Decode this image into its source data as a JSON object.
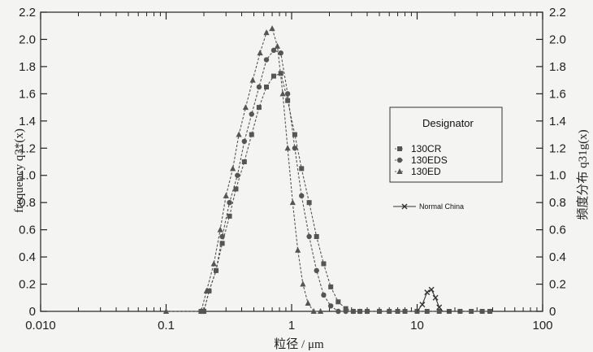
{
  "chart_data": {
    "type": "line",
    "xscale": "log",
    "xlim": [
      0.01,
      100
    ],
    "ylim": [
      0,
      2.2
    ],
    "x_ticks": [
      "0.010",
      "0.1",
      "1",
      "10",
      "100"
    ],
    "y_ticks": [
      "0",
      "0.2",
      "0.4",
      "0.6",
      "0.8",
      "1.0",
      "1.2",
      "1.4",
      "1.6",
      "1.8",
      "2.0",
      "2.2"
    ],
    "ylabel_left": "frequency q3*(x)",
    "ylabel_right": "频度分布 q31g(x)",
    "xlabel": "粒径 / μm",
    "legend_title": "Designator",
    "legend_placement": "right",
    "series": [
      {
        "name": "130CR",
        "marker": "square",
        "color": "#555555",
        "points": [
          [
            0.19,
            0
          ],
          [
            0.2,
            0
          ],
          [
            0.22,
            0.15
          ],
          [
            0.25,
            0.3
          ],
          [
            0.28,
            0.5
          ],
          [
            0.32,
            0.7
          ],
          [
            0.36,
            0.9
          ],
          [
            0.42,
            1.1
          ],
          [
            0.48,
            1.3
          ],
          [
            0.55,
            1.5
          ],
          [
            0.63,
            1.65
          ],
          [
            0.72,
            1.73
          ],
          [
            0.82,
            1.75
          ],
          [
            0.93,
            1.55
          ],
          [
            1.06,
            1.3
          ],
          [
            1.2,
            1.05
          ],
          [
            1.38,
            0.8
          ],
          [
            1.58,
            0.55
          ],
          [
            1.8,
            0.35
          ],
          [
            2.05,
            0.18
          ],
          [
            2.35,
            0.07
          ],
          [
            2.7,
            0.02
          ],
          [
            3.1,
            0
          ],
          [
            3.5,
            0
          ],
          [
            4,
            0
          ],
          [
            5,
            0
          ],
          [
            6,
            0
          ],
          [
            7,
            0
          ],
          [
            8,
            0
          ],
          [
            10,
            0
          ],
          [
            12,
            0
          ],
          [
            15,
            0
          ],
          [
            18,
            0
          ],
          [
            22,
            0
          ],
          [
            27,
            0
          ],
          [
            33,
            0
          ],
          [
            38,
            0
          ]
        ]
      },
      {
        "name": "130EDS",
        "marker": "circle",
        "color": "#555555",
        "points": [
          [
            0.19,
            0
          ],
          [
            0.2,
            0
          ],
          [
            0.22,
            0.15
          ],
          [
            0.25,
            0.3
          ],
          [
            0.28,
            0.55
          ],
          [
            0.32,
            0.8
          ],
          [
            0.37,
            1.0
          ],
          [
            0.42,
            1.25
          ],
          [
            0.48,
            1.45
          ],
          [
            0.55,
            1.65
          ],
          [
            0.63,
            1.85
          ],
          [
            0.72,
            1.92
          ],
          [
            0.82,
            1.9
          ],
          [
            0.93,
            1.6
          ],
          [
            1.06,
            1.2
          ],
          [
            1.2,
            0.85
          ],
          [
            1.38,
            0.55
          ],
          [
            1.58,
            0.3
          ],
          [
            1.8,
            0.12
          ],
          [
            2.05,
            0.04
          ],
          [
            2.35,
            0
          ],
          [
            2.7,
            0
          ],
          [
            3.1,
            0
          ],
          [
            3.5,
            0
          ],
          [
            4,
            0
          ]
        ]
      },
      {
        "name": "130ED",
        "marker": "triangle",
        "color": "#555555",
        "points": [
          [
            0.1,
            0
          ],
          [
            0.19,
            0
          ],
          [
            0.21,
            0.15
          ],
          [
            0.24,
            0.35
          ],
          [
            0.27,
            0.6
          ],
          [
            0.3,
            0.85
          ],
          [
            0.34,
            1.05
          ],
          [
            0.38,
            1.3
          ],
          [
            0.43,
            1.5
          ],
          [
            0.49,
            1.7
          ],
          [
            0.56,
            1.9
          ],
          [
            0.63,
            2.05
          ],
          [
            0.7,
            2.08
          ],
          [
            0.77,
            1.95
          ],
          [
            0.85,
            1.6
          ],
          [
            0.93,
            1.2
          ],
          [
            1.02,
            0.8
          ],
          [
            1.12,
            0.45
          ],
          [
            1.23,
            0.2
          ],
          [
            1.35,
            0.06
          ],
          [
            1.5,
            0
          ],
          [
            1.7,
            0
          ]
        ]
      },
      {
        "name": "Normal China",
        "marker": "x",
        "color": "#333333",
        "points": [
          [
            10,
            0
          ],
          [
            11,
            0.05
          ],
          [
            12,
            0.14
          ],
          [
            13,
            0.16
          ],
          [
            14,
            0.1
          ],
          [
            15,
            0.03
          ],
          [
            16,
            0
          ],
          [
            18,
            0
          ],
          [
            22,
            0
          ]
        ]
      }
    ]
  }
}
